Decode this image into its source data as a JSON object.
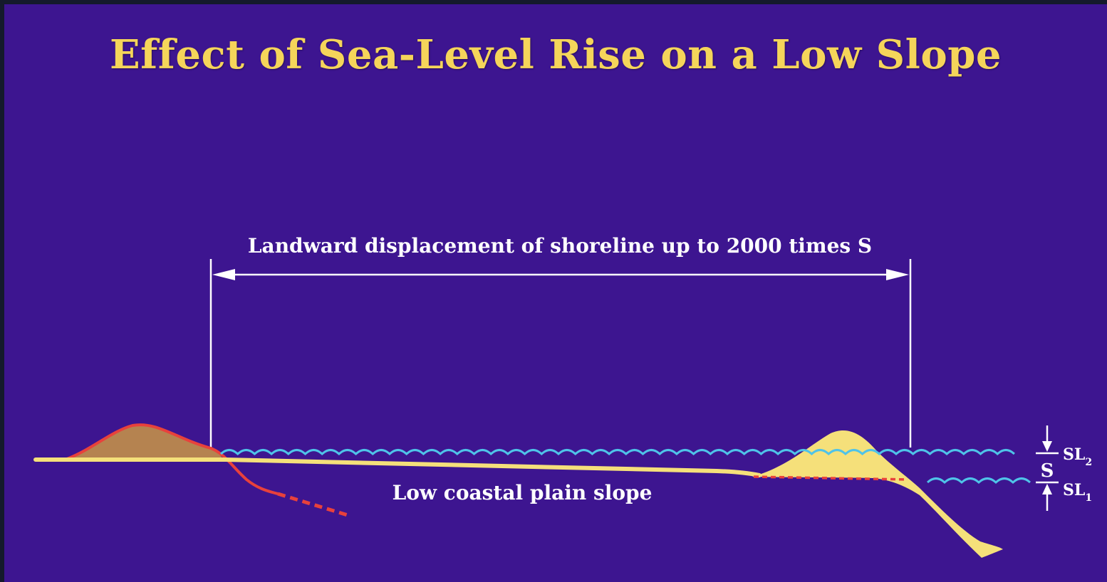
{
  "title": "Effect of Sea-Level Rise on a Low Slope",
  "labels": {
    "displacement": "Landward displacement of shoreline up to 2000 times S",
    "slope": "Low coastal plain slope",
    "rise": "S",
    "sl2_main": "SL",
    "sl2_sub": "2",
    "sl1_main": "SL",
    "sl1_sub": "1"
  },
  "colors": {
    "background": "#3d1590",
    "title": "#f5d55a",
    "sand": "#f5e07a",
    "old_dune_fill": "#b58350",
    "old_profile_line": "#e8413c",
    "water": "#4fc3e8",
    "annotation": "#ffffff"
  }
}
